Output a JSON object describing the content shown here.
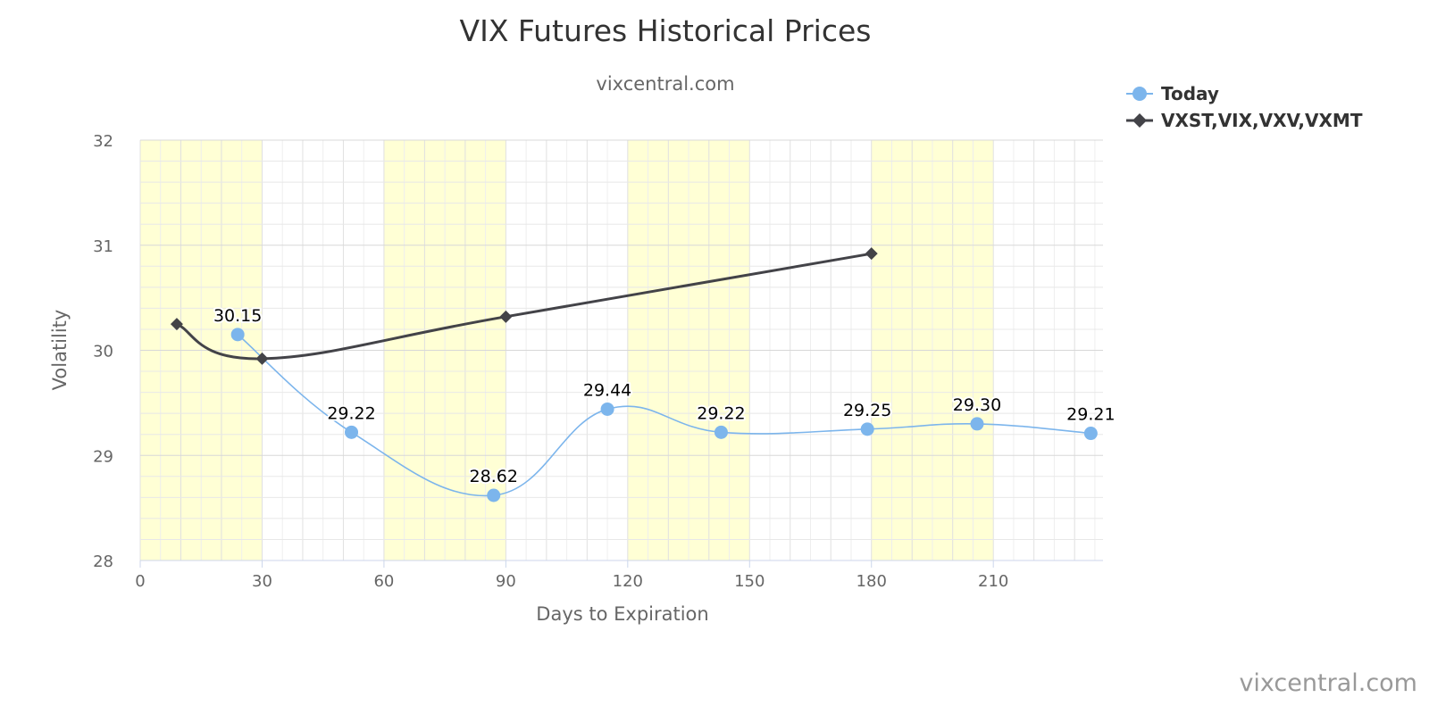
{
  "chart_data": {
    "type": "line",
    "title": "VIX Futures Historical Prices",
    "subtitle": "vixcentral.com",
    "xlabel": "Days to Expiration",
    "ylabel": "Volatility",
    "xlim": [
      0,
      237
    ],
    "ylim": [
      28,
      32
    ],
    "x_ticks": [
      0,
      30,
      60,
      90,
      120,
      150,
      180,
      210
    ],
    "y_ticks": [
      28,
      29,
      30,
      31,
      32
    ],
    "grid": true,
    "shaded_bands": [
      [
        0,
        30
      ],
      [
        60,
        90
      ],
      [
        120,
        150
      ],
      [
        180,
        210
      ]
    ],
    "legend_position": "top-right",
    "series": [
      {
        "name": "Today",
        "color": "#7cb5ec",
        "marker": "circle",
        "points": [
          {
            "x": 24,
            "y": 30.15,
            "label": "30.15"
          },
          {
            "x": 52,
            "y": 29.22,
            "label": "29.22"
          },
          {
            "x": 87,
            "y": 28.62,
            "label": "28.62"
          },
          {
            "x": 115,
            "y": 29.44,
            "label": "29.44"
          },
          {
            "x": 143,
            "y": 29.22,
            "label": "29.22"
          },
          {
            "x": 179,
            "y": 29.25,
            "label": "29.25"
          },
          {
            "x": 206,
            "y": 29.3,
            "label": "29.30"
          },
          {
            "x": 234,
            "y": 29.21,
            "label": "29.21"
          }
        ]
      },
      {
        "name": "VXST,VIX,VXV,VXMT",
        "color": "#434348",
        "marker": "diamond",
        "points": [
          {
            "x": 9,
            "y": 30.25
          },
          {
            "x": 30,
            "y": 29.92
          },
          {
            "x": 90,
            "y": 30.32
          },
          {
            "x": 180,
            "y": 30.92
          }
        ]
      }
    ],
    "band_color": "#ffffd5",
    "credit": "vixcentral.com"
  }
}
